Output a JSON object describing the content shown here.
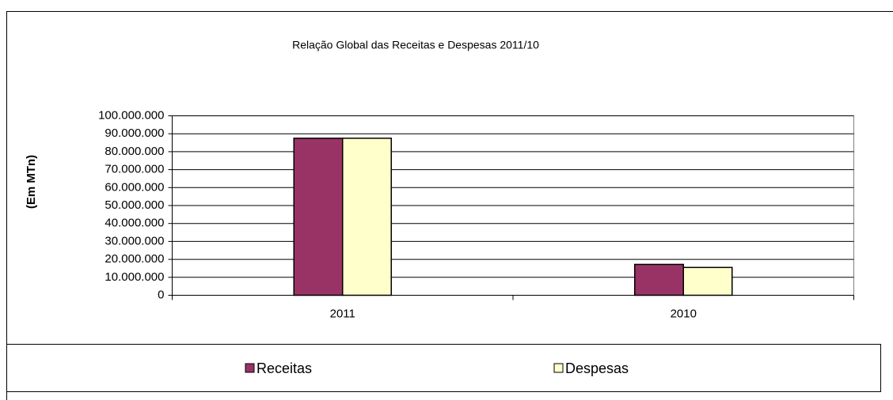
{
  "chart_data": {
    "type": "bar",
    "title": "Relação Global das Receitas e Despesas 2011/10",
    "y_label": "(Em MTn)",
    "categories": [
      "2011",
      "2010"
    ],
    "series": [
      {
        "name": "Receitas",
        "color": "#993366",
        "values": [
          87500000,
          17200000
        ]
      },
      {
        "name": "Despesas",
        "color": "#ffffcc",
        "values": [
          87500000,
          15500000
        ]
      }
    ],
    "ylim": [
      0,
      100000000
    ],
    "yticks": [
      0,
      {
        "value": 10000000,
        "label": "10.000.000"
      },
      {
        "value": 20000000,
        "label": "20.000.000"
      },
      {
        "value": 30000000,
        "label": "30.000.000"
      },
      {
        "value": 40000000,
        "label": "40.000.000"
      },
      {
        "value": 50000000,
        "label": "50.000.000"
      },
      {
        "value": 60000000,
        "label": "60.000.000"
      },
      {
        "value": 70000000,
        "label": "70.000.000"
      },
      {
        "value": 80000000,
        "label": "80.000.000"
      },
      {
        "value": 90000000,
        "label": "90.000.000"
      },
      {
        "value": 100000000,
        "label": "100.000.000"
      }
    ],
    "grid": true,
    "legend": "bottom"
  }
}
